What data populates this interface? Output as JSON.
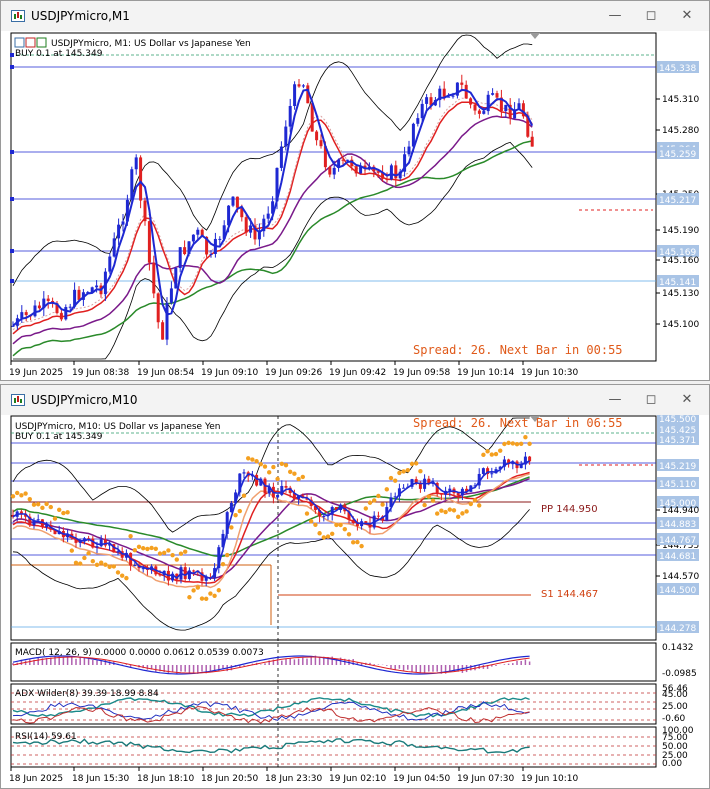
{
  "window1": {
    "title": "USDJPYmicro,M1",
    "header": "USDJPYmicro, M1:  US Dollar vs Japanese Yen",
    "trade_line": "BUY 0.1 at 145.349",
    "spread_text": "Spread: 26. Next Bar in 00:55",
    "price_labels": [
      "145.338",
      "145.310",
      "145.280",
      "145.264",
      "145.259",
      "145.250",
      "145.217",
      "145.190",
      "145.169",
      "145.160",
      "145.141",
      "145.130",
      "145.100"
    ],
    "time_labels": [
      "19 Jun 2025",
      "19 Jun 08:38",
      "19 Jun 08:54",
      "19 Jun 09:10",
      "19 Jun 09:26",
      "19 Jun 09:42",
      "19 Jun 09:58",
      "19 Jun 10:14",
      "19 Jun 10:30"
    ]
  },
  "window2": {
    "title": "USDJPYmicro,M10",
    "header": "USDJPYmicro, M10:  US Dollar vs Japanese Yen",
    "trade_line": "BUY 0.1 at 145.349",
    "spread_text": "Spread: 26. Next Bar in 06:55",
    "pivot_label": "PP 144.950",
    "s1_label": "S1 144.467",
    "price_labels": [
      "145.500",
      "145.425",
      "145.371",
      "145.259",
      "145.219",
      "145.110",
      "145.000",
      "144.940",
      "144.883",
      "144.755",
      "144.767",
      "144.681",
      "144.570",
      "144.500",
      "144.278"
    ],
    "macd_label": "MACD( 12, 26, 9) 0.0000 0.0000 0.0612 0.0539 0.0073",
    "macd_scale": [
      "0.1432",
      "-0.0985"
    ],
    "adx_label": "ADX Wilder(8) 39.39 18.99 8.84",
    "adx_scale": [
      "56.46",
      "45.00",
      "25.00",
      "-0.60"
    ],
    "rsi_label": "RSI(14) 59.61",
    "rsi_scale": [
      "100.00",
      "75.00",
      "50.00",
      "25.00",
      "0.00"
    ],
    "time_labels": [
      "18 Jun 2025",
      "18 Jun 15:30",
      "18 Jun 18:10",
      "18 Jun 20:50",
      "18 Jun 23:30",
      "19 Jun 02:10",
      "19 Jun 04:50",
      "19 Jun 07:30",
      "19 Jun 10:10"
    ]
  },
  "colors": {
    "bull": "#1e28d2",
    "bear": "#e02020",
    "bb": "#000000",
    "green": "#2a8a2a",
    "purple": "#7a1a8a",
    "sar": "#f4a020",
    "spread": "#e05a1a",
    "label_bg": "#a9c4e6"
  }
}
